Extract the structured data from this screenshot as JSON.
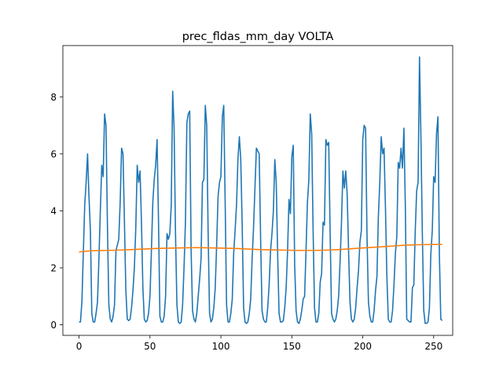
{
  "chart_data": {
    "type": "line",
    "title": "prec_fldas_mm_day VOLTA",
    "xlabel": "",
    "ylabel": "",
    "xlim": [
      -11.4,
      263.4
    ],
    "ylim": [
      -0.37,
      9.8
    ],
    "x_ticks": [
      0,
      50,
      100,
      150,
      200,
      250
    ],
    "y_ticks": [
      0,
      2,
      4,
      6,
      8
    ],
    "grid": false,
    "legend": "none",
    "series": [
      {
        "color": "#1f77b4",
        "values": [
          0.1,
          0.1,
          0.8,
          2.5,
          4.2,
          5.0,
          6.0,
          4.5,
          3.3,
          0.4,
          0.1,
          0.1,
          0.4,
          0.8,
          2.3,
          4.0,
          5.6,
          5.2,
          7.4,
          7.0,
          3.5,
          0.7,
          0.2,
          0.1,
          0.3,
          0.7,
          2.6,
          2.8,
          3.0,
          4.3,
          6.2,
          6.0,
          3.6,
          1.2,
          0.2,
          0.15,
          0.2,
          0.6,
          1.2,
          2.0,
          3.4,
          5.6,
          5.0,
          5.4,
          3.6,
          1.3,
          0.2,
          0.1,
          0.15,
          0.4,
          1.0,
          2.6,
          4.3,
          5.1,
          5.6,
          6.5,
          3.7,
          0.3,
          0.1,
          0.1,
          0.3,
          1.0,
          3.2,
          3.0,
          3.2,
          4.2,
          8.2,
          6.9,
          3.2,
          0.7,
          0.1,
          0.05,
          0.1,
          0.7,
          2.0,
          3.6,
          7.1,
          7.4,
          7.5,
          2.6,
          0.5,
          0.2,
          0.1,
          0.4,
          1.0,
          1.6,
          2.3,
          5.0,
          5.1,
          7.7,
          7.0,
          3.2,
          0.4,
          0.1,
          0.2,
          0.6,
          1.3,
          2.8,
          4.5,
          5.0,
          5.2,
          7.3,
          7.7,
          4.3,
          0.7,
          0.1,
          0.1,
          0.4,
          0.9,
          2.5,
          3.3,
          4.2,
          5.8,
          6.6,
          5.8,
          3.5,
          0.6,
          0.1,
          0.05,
          0.1,
          0.4,
          0.9,
          2.3,
          3.4,
          4.8,
          6.2,
          6.1,
          6.0,
          3.0,
          0.5,
          0.2,
          0.1,
          0.1,
          0.6,
          1.4,
          2.6,
          3.2,
          4.0,
          5.8,
          5.0,
          2.5,
          0.4,
          0.1,
          0.1,
          0.15,
          0.6,
          1.3,
          2.6,
          4.4,
          3.9,
          5.9,
          6.3,
          2.1,
          0.5,
          0.1,
          0.05,
          0.2,
          0.5,
          0.9,
          1.0,
          2.6,
          4.3,
          5.1,
          7.4,
          6.7,
          3.3,
          0.6,
          0.1,
          0.1,
          0.4,
          1.5,
          1.8,
          3.6,
          3.5,
          6.5,
          6.3,
          6.4,
          3.2,
          0.4,
          0.2,
          0.1,
          0.2,
          0.5,
          1.0,
          2.2,
          3.6,
          5.4,
          4.8,
          5.4,
          4.6,
          2.6,
          0.8,
          0.2,
          0.1,
          0.2,
          0.6,
          1.3,
          1.9,
          2.9,
          3.3,
          6.5,
          7.0,
          6.9,
          3.1,
          0.8,
          0.3,
          0.1,
          0.1,
          0.5,
          1.2,
          1.7,
          3.8,
          5.0,
          6.6,
          6.0,
          6.2,
          4.1,
          1.7,
          0.2,
          0.1,
          0.1,
          0.5,
          1.4,
          2.5,
          3.1,
          5.7,
          5.5,
          6.2,
          5.5,
          6.9,
          4.2,
          0.2,
          0.15,
          0.1,
          0.1,
          1.3,
          1.4,
          3.3,
          4.7,
          5.0,
          9.4,
          6.6,
          3.2,
          0.5,
          0.05,
          0.05,
          0.1,
          0.6,
          2.5,
          3.3,
          5.2,
          5.0,
          6.7,
          7.3,
          2.5,
          0.2,
          0.15
        ]
      },
      {
        "color": "#ff7f0e",
        "values": [
          2.56,
          2.6,
          2.61,
          2.62,
          2.64,
          2.66,
          2.68,
          2.69,
          2.7,
          2.71,
          2.7,
          2.69,
          2.68,
          2.66,
          2.64,
          2.63,
          2.62,
          2.61,
          2.61,
          2.62,
          2.64,
          2.67,
          2.7,
          2.73,
          2.76,
          2.79,
          2.81,
          2.82,
          2.82
        ]
      }
    ]
  }
}
